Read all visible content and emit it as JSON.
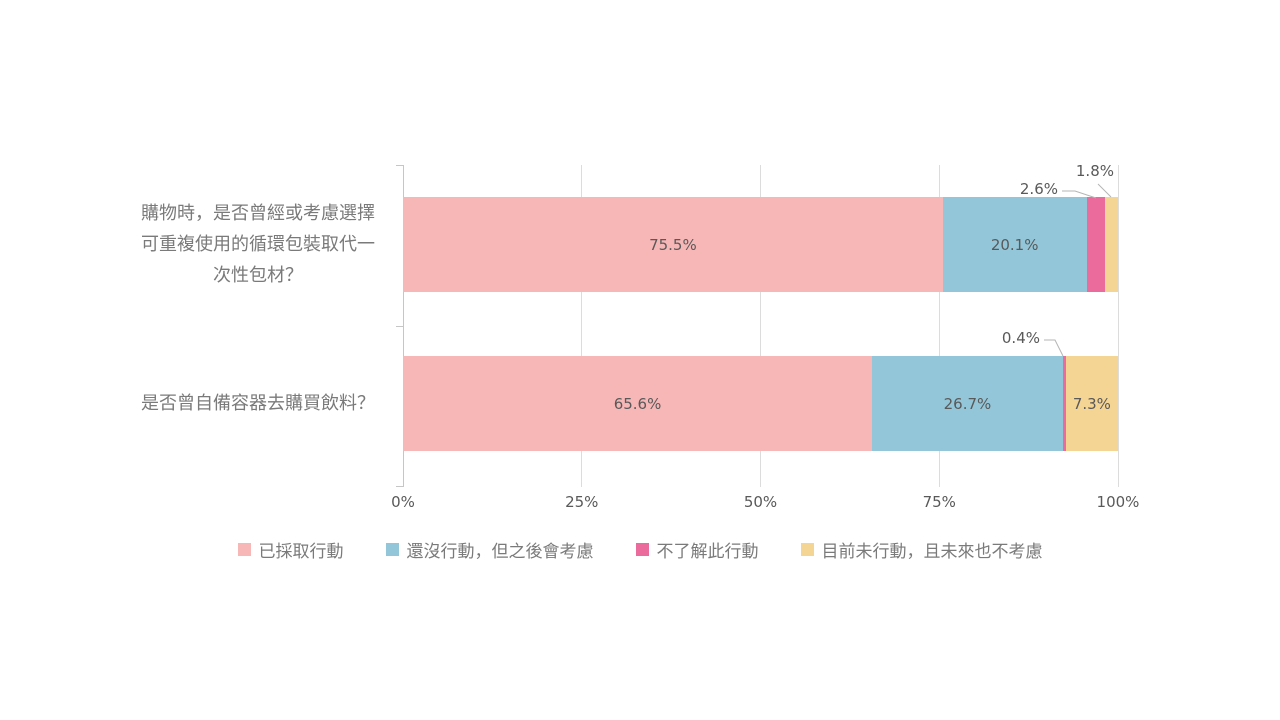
{
  "chart_data": {
    "type": "bar",
    "orientation": "horizontal",
    "stacked": true,
    "title": "",
    "xlabel": "",
    "ylabel": "",
    "xlim": [
      0,
      100
    ],
    "grid": true,
    "legend_position": "bottom",
    "x_axis": {
      "ticks": [
        "0%",
        "25%",
        "50%",
        "75%",
        "100%"
      ],
      "values": [
        0,
        25,
        50,
        75,
        100
      ]
    },
    "categories": [
      {
        "label": "購物時，是否曾經或考慮選擇可重複使用的循環包裝取代一次性包材？",
        "display_lines": [
          "購物時，是否曾經或考慮選擇",
          "可重複使用的循環包裝取代一",
          "次性包材？"
        ]
      },
      {
        "label": "是否曾自備容器去購買飲料？",
        "display_lines": [
          "是否曾自備容器去購買飲料？"
        ]
      }
    ],
    "series": [
      {
        "name": "已採取行動",
        "color": "#f7b7b7",
        "values": [
          75.5,
          65.6
        ],
        "data_labels": [
          "75.5%",
          "65.6%"
        ],
        "label_placement": [
          "inside",
          "inside"
        ]
      },
      {
        "name": "還沒行動，但之後會考慮",
        "color": "#93c6d8",
        "values": [
          20.1,
          26.7
        ],
        "data_labels": [
          "20.1%",
          "26.7%"
        ],
        "label_placement": [
          "inside",
          "inside"
        ]
      },
      {
        "name": "不了解此行動",
        "color": "#ea6b9c",
        "values": [
          2.6,
          0.4
        ],
        "data_labels": [
          "2.6%",
          "0.4%"
        ],
        "label_placement": [
          "callout",
          "callout"
        ]
      },
      {
        "name": "目前未行動，且未來也不考慮",
        "color": "#f5d593",
        "values": [
          1.8,
          7.3
        ],
        "data_labels": [
          "1.8%",
          "7.3%"
        ],
        "label_placement": [
          "callout",
          "inside"
        ]
      }
    ],
    "style": {
      "gridline_color": "#dcdcdc",
      "axis_color": "#c6c6c6",
      "leader_line_color": "#b5b5b5",
      "data_label_color": "#595959",
      "category_label_color": "#7a7a7a",
      "legend_text_color": "#7a7a7a",
      "background": "#ffffff"
    }
  }
}
